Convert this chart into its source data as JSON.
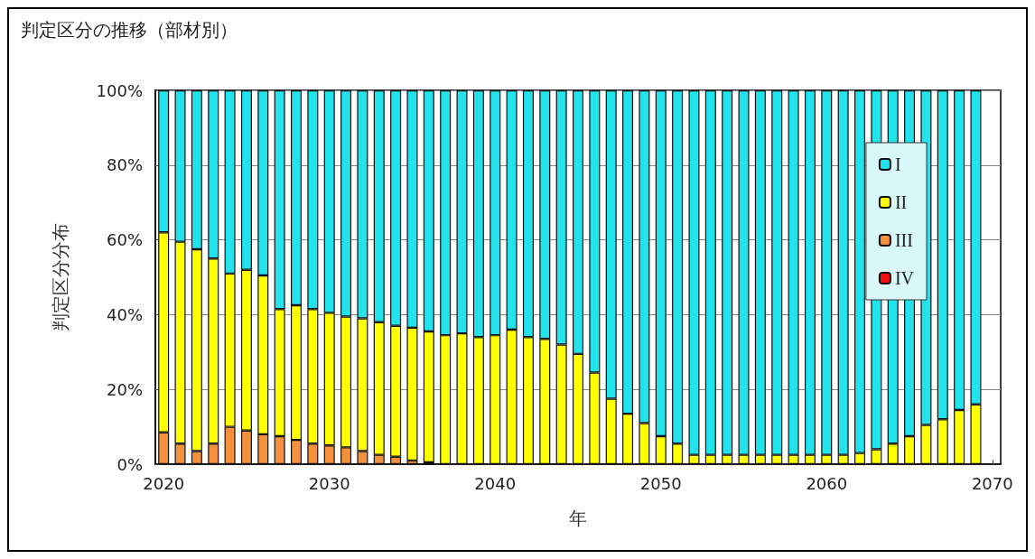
{
  "chart_data": {
    "type": "bar",
    "stacked": true,
    "title": "判定区分の推移（部材別）",
    "xlabel": "年",
    "ylabel": "判定区分分布",
    "categories": [
      "2020",
      null,
      null,
      null,
      null,
      null,
      null,
      null,
      null,
      null,
      "2030",
      null,
      null,
      null,
      null,
      null,
      null,
      null,
      null,
      null,
      "2040",
      null,
      null,
      null,
      null,
      null,
      null,
      null,
      null,
      null,
      "2050",
      null,
      null,
      null,
      null,
      null,
      null,
      null,
      null,
      null,
      "2060",
      null,
      null,
      null,
      null,
      null,
      null,
      null,
      null,
      null,
      "2070"
    ],
    "ylim": [
      0,
      100
    ],
    "yticks": [
      {
        "value": 0,
        "label": "0%"
      },
      {
        "value": 20,
        "label": "20%"
      },
      {
        "value": 40,
        "label": "40%"
      },
      {
        "value": 60,
        "label": "60%"
      },
      {
        "value": 80,
        "label": "80%"
      },
      {
        "value": 100,
        "label": "100%"
      }
    ],
    "grid": "y",
    "legend": "top right",
    "series": [
      {
        "name": "IV",
        "color": "#ee1111",
        "values": [
          0,
          0,
          0,
          0,
          0,
          0,
          0,
          0,
          0,
          0,
          0,
          0,
          0,
          0,
          0,
          0,
          0,
          0,
          0,
          0,
          0,
          0,
          0,
          0,
          0,
          0,
          0,
          0,
          0,
          0,
          0,
          0,
          0,
          0,
          0,
          0,
          0,
          0,
          0,
          0,
          0,
          0,
          0,
          0,
          0,
          0,
          0,
          0,
          0,
          0,
          null
        ]
      },
      {
        "name": "III",
        "color": "#f4913c",
        "values": [
          8.5,
          5.5,
          3.5,
          5.5,
          10,
          9,
          8,
          7.5,
          6.5,
          5.5,
          5,
          4.5,
          3.5,
          2.5,
          2,
          1,
          0.5,
          0,
          0,
          0,
          0,
          0,
          0,
          0,
          0,
          0,
          0,
          0,
          0,
          0,
          0,
          0,
          0,
          0,
          0,
          0,
          0,
          0,
          0,
          0,
          0,
          0,
          0,
          0,
          0,
          0,
          0,
          0,
          0,
          0,
          null
        ]
      },
      {
        "name": "II",
        "color": "#ffff00",
        "values": [
          53.5,
          54,
          54,
          49.5,
          41,
          43,
          42.5,
          34,
          36,
          36,
          35.5,
          35,
          35.5,
          35.5,
          35,
          35.5,
          35,
          34.5,
          35,
          34,
          34.5,
          36,
          34,
          33.5,
          32,
          29.5,
          24.5,
          17.5,
          13.5,
          11,
          7.5,
          5.5,
          2.5,
          2.5,
          2.5,
          2.5,
          2.5,
          2.5,
          2.5,
          2.5,
          2.5,
          2.5,
          3,
          4,
          5.5,
          7.5,
          10.5,
          12,
          14.5,
          16,
          null
        ]
      },
      {
        "name": "I",
        "color": "#22e3ec",
        "values": [
          38,
          40.5,
          42.5,
          45,
          49,
          48,
          49.5,
          58.5,
          57.5,
          58.5,
          59.5,
          60.5,
          61,
          62,
          63,
          63.5,
          64.5,
          65.5,
          65,
          66,
          65.5,
          64,
          66,
          66.5,
          68,
          70.5,
          75.5,
          82.5,
          86.5,
          89,
          92.5,
          94.5,
          97.5,
          97.5,
          97.5,
          97.5,
          97.5,
          97.5,
          97.5,
          97.5,
          97.5,
          97.5,
          97,
          96,
          94.5,
          92.5,
          89.5,
          88,
          85.5,
          84,
          null
        ]
      }
    ]
  }
}
